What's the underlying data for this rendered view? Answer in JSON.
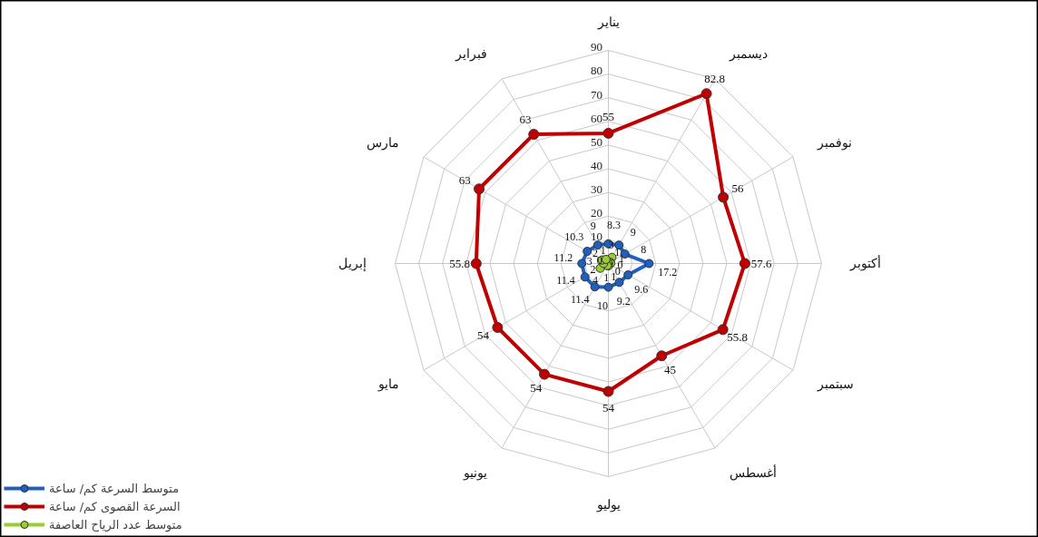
{
  "chart_data": {
    "type": "radar",
    "categories": [
      "يناير",
      "ديسمبر",
      "نوفمبر",
      "أكتوبر",
      "سبتمبر",
      "أغسطس",
      "يوليو",
      "يونيو",
      "مايو",
      "إبريل",
      "مارس",
      "فبراير"
    ],
    "series": [
      {
        "name": "متوسط السرعة كم/ ساعة",
        "color": "#1f5fbf",
        "values": [
          8.3,
          9,
          8,
          17.2,
          9.6,
          9.2,
          10,
          11.4,
          11.4,
          11.2,
          10.3,
          9
        ]
      },
      {
        "name": "السرعة القصوى كم/ ساعة",
        "color": "#c00000",
        "values": [
          55,
          82.8,
          56,
          57.6,
          55.8,
          45,
          54,
          54,
          54,
          55.8,
          63,
          63
        ]
      },
      {
        "name": "متوسط عدد الرياح العاصفة",
        "color": "#9acd32",
        "values": [
          1,
          3,
          1,
          1,
          0,
          0,
          1,
          1,
          4,
          2,
          3,
          2
        ]
      }
    ],
    "ylim": [
      0,
      90
    ],
    "yticks": [
      0,
      10,
      20,
      30,
      40,
      50,
      60,
      70,
      80,
      90
    ],
    "data_labels": true,
    "legend": "bottom left",
    "marker": "circle",
    "grid": true
  }
}
